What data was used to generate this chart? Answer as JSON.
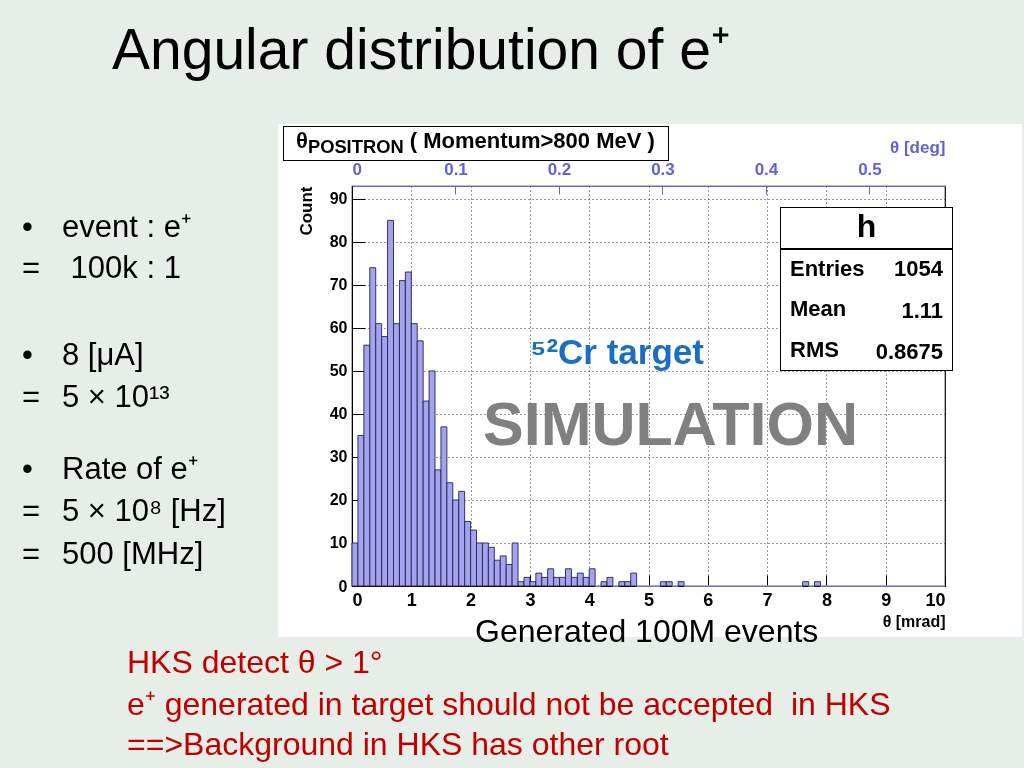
{
  "chart_data": {
    "type": "histogram",
    "title": "Angular distribution of e⁺",
    "subtitle": "θ$_{POSITRON}$ ( Momentum>800 MeV )",
    "xlabel": "θ [mrad]",
    "ylabel": "Count",
    "x2label": "θ [deg]",
    "bins": [
      0,
      0.1,
      0.2,
      0.3,
      0.4,
      0.5,
      0.6,
      0.7,
      0.8,
      0.9,
      1,
      1.1,
      1.2,
      1.3,
      1.4,
      1.5,
      1.6,
      1.7,
      1.8,
      1.9,
      2,
      2.1,
      2.2,
      2.3,
      2.4,
      2.5,
      2.6,
      2.7,
      2.8,
      2.9,
      3,
      3.1,
      3.2,
      3.3,
      3.4,
      3.5,
      3.6,
      3.7,
      3.8,
      3.9,
      4,
      4.1,
      4.2,
      4.3,
      4.4,
      4.5,
      4.6,
      4.7,
      4.8,
      5.2,
      5.3,
      5.4,
      5.5,
      5.6,
      7.6,
      7.7,
      7.8,
      7.9,
      10
    ],
    "values": [
      10,
      35,
      56,
      74,
      61,
      58,
      85,
      61,
      71,
      73,
      61,
      57,
      43,
      50,
      27,
      37,
      24,
      20,
      22,
      15,
      13,
      10,
      10,
      9,
      6,
      7,
      5,
      10,
      1,
      2,
      1,
      3,
      2,
      4,
      2,
      2,
      4,
      2,
      3,
      2,
      4,
      0,
      1,
      2,
      0,
      1,
      1,
      3,
      0,
      1,
      1,
      0,
      1,
      0,
      1,
      0,
      1,
      0
    ],
    "color": "#a3a3ef",
    "xlim": [
      0,
      10
    ],
    "xticks": [
      0,
      1,
      2,
      3,
      4,
      5,
      6,
      7,
      8,
      9,
      10
    ],
    "ylim": [
      0,
      93
    ],
    "yticks": [
      0,
      10,
      20,
      30,
      40,
      50,
      60,
      70,
      80,
      90
    ],
    "x2lim": [
      0,
      0.573
    ],
    "x2ticks": [
      0,
      0.1,
      0.2,
      0.3,
      0.4,
      0.5
    ],
    "grid": true,
    "annotations": [
      "⁵²Cr target",
      "SIMULATION",
      "h",
      "Entries",
      "1054",
      "Mean",
      "1.11",
      "RMS",
      "0.8675",
      "Generated 100M events",
      "•\tevent : e⁺",
      "=\t 100k : 1",
      "•\t8 [μA]",
      "=\t5 × 10¹³",
      "•\tRate of e⁺",
      "=\t5 × 10⁸ [Hz]",
      "=\t500 [MHz]",
      "HKS detect θ > 1°",
      "e⁺ generated in target should not be accepted  in HKS",
      "==>Background in HKS has other root"
    ]
  }
}
